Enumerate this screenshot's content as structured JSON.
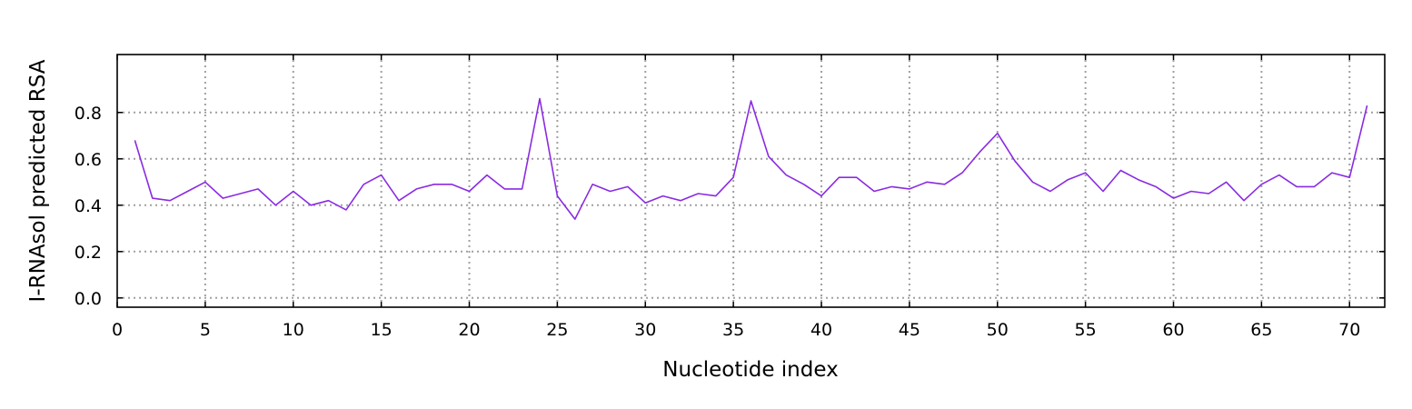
{
  "chart_data": {
    "type": "line",
    "title": "",
    "xlabel": "Nucleotide index",
    "ylabel": "I-RNAsol predicted RSA",
    "xlim": [
      0,
      72
    ],
    "ylim": [
      -0.04,
      1.05
    ],
    "xticks": [
      0,
      5,
      10,
      15,
      20,
      25,
      30,
      35,
      40,
      45,
      50,
      55,
      60,
      65,
      70
    ],
    "yticks": [
      0.0,
      0.2,
      0.4,
      0.6,
      0.8
    ],
    "ytick_labels": [
      "0.0",
      "0.2",
      "0.4",
      "0.6",
      "0.8"
    ],
    "grid": true,
    "series": [
      {
        "color": "#8a2be2",
        "x": [
          1,
          2,
          3,
          4,
          5,
          6,
          7,
          8,
          9,
          10,
          11,
          12,
          13,
          14,
          15,
          16,
          17,
          18,
          19,
          20,
          21,
          22,
          23,
          24,
          25,
          26,
          27,
          28,
          29,
          30,
          31,
          32,
          33,
          34,
          35,
          36,
          37,
          38,
          39,
          40,
          41,
          42,
          43,
          44,
          45,
          46,
          47,
          48,
          49,
          50,
          51,
          52,
          53,
          54,
          55,
          56,
          57,
          58,
          59,
          60,
          61,
          62,
          63,
          64,
          65,
          66,
          67,
          68,
          69,
          70,
          71
        ],
        "values": [
          0.68,
          0.43,
          0.42,
          0.46,
          0.5,
          0.43,
          0.45,
          0.47,
          0.4,
          0.46,
          0.4,
          0.42,
          0.38,
          0.49,
          0.53,
          0.42,
          0.47,
          0.49,
          0.49,
          0.46,
          0.53,
          0.47,
          0.47,
          0.86,
          0.44,
          0.34,
          0.49,
          0.46,
          0.48,
          0.41,
          0.44,
          0.42,
          0.45,
          0.44,
          0.52,
          0.85,
          0.61,
          0.53,
          0.49,
          0.44,
          0.52,
          0.52,
          0.46,
          0.48,
          0.47,
          0.5,
          0.49,
          0.54,
          0.63,
          0.71,
          0.59,
          0.5,
          0.46,
          0.51,
          0.54,
          0.46,
          0.55,
          0.51,
          0.48,
          0.43,
          0.46,
          0.45,
          0.5,
          0.42,
          0.49,
          0.53,
          0.48,
          0.48,
          0.54,
          0.52,
          0.83
        ]
      }
    ]
  }
}
